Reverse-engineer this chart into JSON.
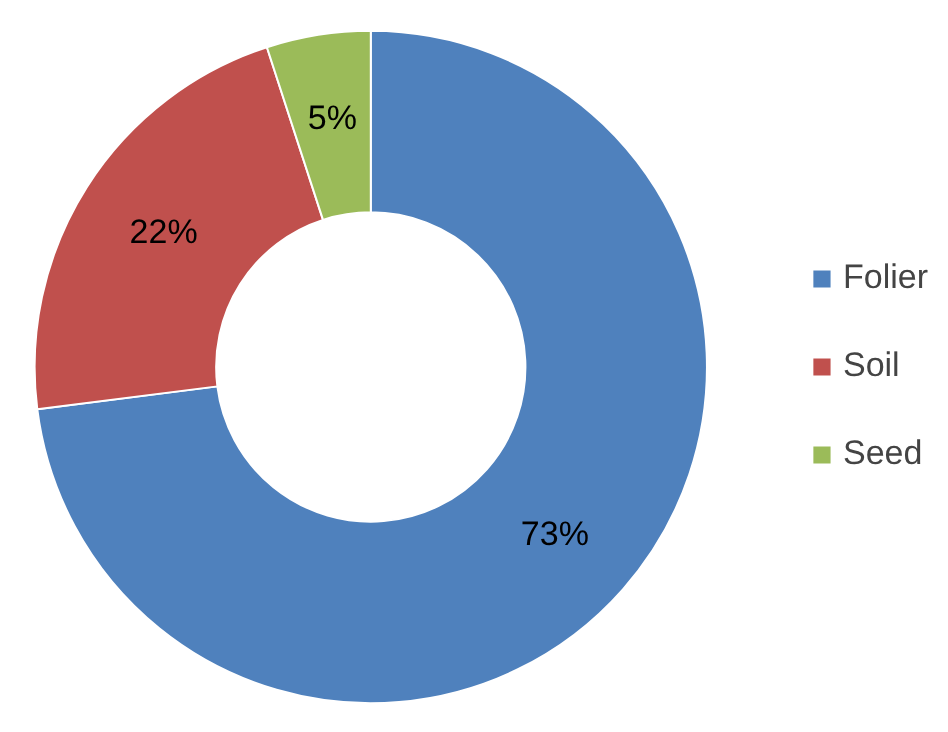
{
  "chart_data": {
    "type": "donut",
    "categories": [
      "Folier",
      "Soil",
      "Seed"
    ],
    "values": [
      73,
      22,
      5
    ],
    "colors": [
      "#4f81bd",
      "#c0504d",
      "#9bbb59"
    ],
    "value_labels": [
      "73%",
      "22%",
      "5%"
    ],
    "legend": "right"
  }
}
